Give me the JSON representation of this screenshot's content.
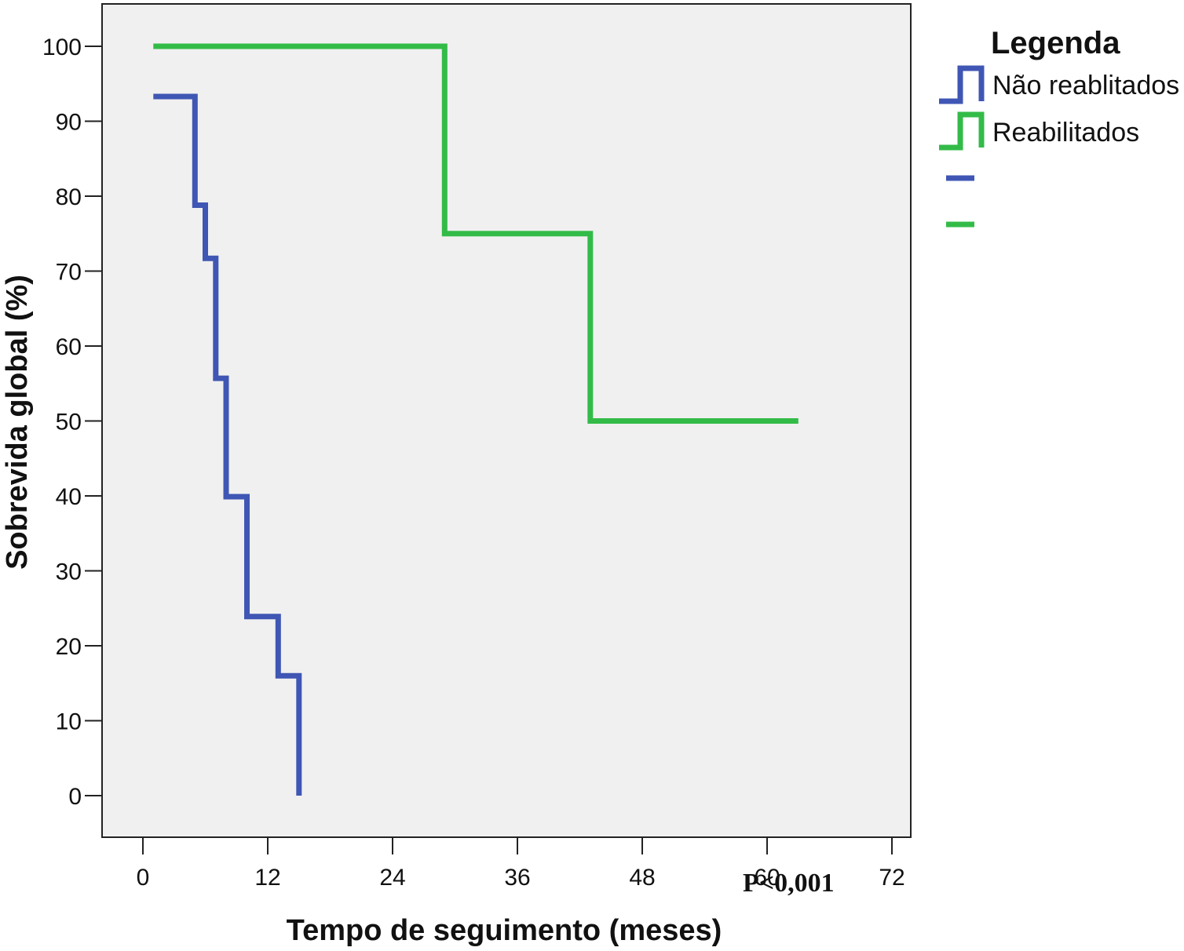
{
  "chart_data": {
    "type": "line",
    "subtype": "kaplan-meier step",
    "xlabel": "Tempo de seguimento (meses)",
    "ylabel": "Sobrevida global (%)",
    "xticks": [
      0,
      12,
      24,
      36,
      48,
      60,
      72
    ],
    "yticks": [
      0,
      10,
      20,
      30,
      40,
      50,
      60,
      70,
      80,
      90,
      100
    ],
    "xlim": [
      0,
      72
    ],
    "ylim": [
      0,
      100
    ],
    "grid": false,
    "background": "#f0f0f0",
    "annotation": "P<0,001",
    "legend": {
      "title": "Legenda",
      "position": "right",
      "entries": [
        {
          "label": "Não reablitados",
          "color": "#3f56b4"
        },
        {
          "label": "Reabilitados",
          "color": "#33bb48"
        }
      ]
    },
    "series": [
      {
        "name": "Não reablitados",
        "color": "#3f56b4",
        "x": [
          1,
          5,
          5,
          6,
          6,
          7,
          7,
          8,
          8,
          10,
          10,
          13,
          13,
          15,
          15
        ],
        "y": [
          93.3,
          93.3,
          78.8,
          78.8,
          71.7,
          71.7,
          55.7,
          55.7,
          39.9,
          39.9,
          23.9,
          23.9,
          16,
          16,
          0
        ]
      },
      {
        "name": "Reabilitados",
        "color": "#33bb48",
        "x": [
          1,
          29,
          29,
          43,
          43,
          63
        ],
        "y": [
          100,
          100,
          75,
          75,
          50,
          50
        ]
      }
    ]
  }
}
